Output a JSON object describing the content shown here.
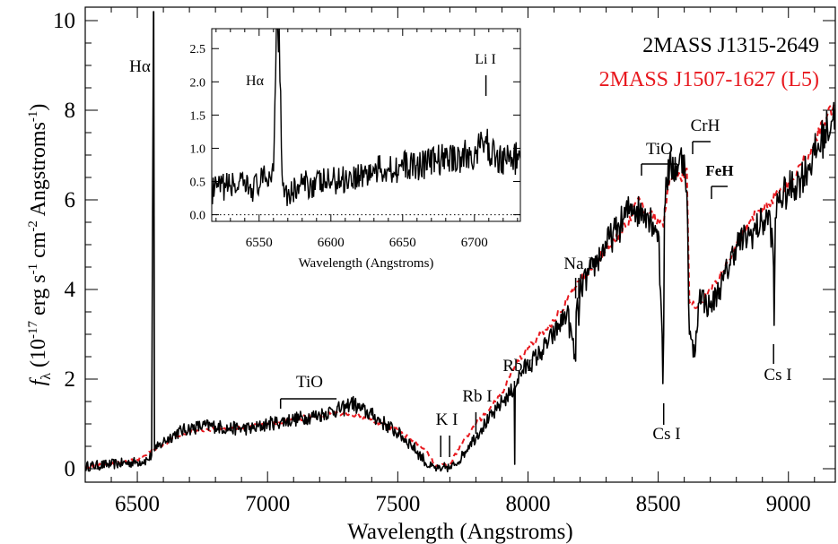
{
  "chart_data": [
    {
      "type": "line",
      "title": "",
      "xlabel": "Wavelength (Angstroms)",
      "ylabel": "f_λ (10^-17 erg s^-1 cm^-2 Angstroms^-1)",
      "ylabel_parts": {
        "f": "f",
        "sub": "λ",
        "main": " (10",
        "exp1": "-17",
        "s": " erg s",
        "exp2": "-1",
        "cm": " cm",
        "exp3": "-2",
        "ang": " Angstroms",
        "exp4": "-1",
        "close": ")"
      },
      "xlim": [
        6300,
        9180
      ],
      "ylim": [
        -0.3,
        10.3
      ],
      "xticks": [
        6500,
        7000,
        7500,
        8000,
        8500,
        9000
      ],
      "yticks": [
        0,
        2,
        4,
        6,
        8,
        10
      ],
      "grid": false,
      "legend_placement": "top-right",
      "series": [
        {
          "name": "2MASS J1315-2649",
          "color": "#000000",
          "style": "solid",
          "x": [
            6300,
            6400,
            6500,
            6540,
            6555,
            6562,
            6563,
            6566,
            6575,
            6600,
            6650,
            6700,
            6750,
            6800,
            6850,
            6900,
            6950,
            7000,
            7050,
            7100,
            7150,
            7200,
            7250,
            7300,
            7320,
            7350,
            7400,
            7450,
            7500,
            7550,
            7600,
            7620,
            7650,
            7665,
            7670,
            7685,
            7700,
            7720,
            7750,
            7780,
            7800,
            7820,
            7850,
            7880,
            7900,
            7920,
            7947,
            7949,
            7951,
            7960,
            7980,
            8000,
            8050,
            8100,
            8150,
            8183,
            8185,
            8190,
            8195,
            8200,
            8250,
            8300,
            8350,
            8400,
            8430,
            8450,
            8480,
            8500,
            8515,
            8518,
            8521,
            8524,
            8530,
            8550,
            8580,
            8600,
            8610,
            8620,
            8640,
            8660,
            8680,
            8700,
            8750,
            8800,
            8850,
            8900,
            8930,
            8943,
            8945,
            8950,
            8960,
            9000,
            9050,
            9100,
            9150,
            9180
          ],
          "y": [
            0.05,
            0.1,
            0.15,
            0.2,
            0.3,
            10.2,
            10.2,
            0.4,
            0.45,
            0.6,
            0.8,
            0.9,
            0.95,
            0.95,
            0.9,
            0.9,
            0.9,
            1.0,
            1.05,
            1.1,
            1.15,
            1.2,
            1.3,
            1.35,
            1.5,
            1.35,
            1.2,
            1.0,
            0.8,
            0.55,
            0.2,
            0.05,
            0.0,
            -0.05,
            0.0,
            0.05,
            0.0,
            0.1,
            0.3,
            0.6,
            0.7,
            0.9,
            1.1,
            1.3,
            1.5,
            1.6,
            1.8,
            0.1,
            1.8,
            2.0,
            2.2,
            2.3,
            2.6,
            3.0,
            3.5,
            2.4,
            3.5,
            3.8,
            3.2,
            4.0,
            4.5,
            5.0,
            5.4,
            5.9,
            5.7,
            5.8,
            5.5,
            5.3,
            3.0,
            1.9,
            3.0,
            5.8,
            6.5,
            6.7,
            6.8,
            7.0,
            6.2,
            3.0,
            2.5,
            4.0,
            3.7,
            3.6,
            4.2,
            5.0,
            5.2,
            5.5,
            5.6,
            4.5,
            3.2,
            5.6,
            6.0,
            6.2,
            6.5,
            7.0,
            7.6,
            8.0
          ]
        },
        {
          "name": "2MASS J1507-1627 (L5)",
          "color": "#e8191f",
          "style": "dashed",
          "x": [
            6300,
            6400,
            6500,
            6600,
            6700,
            6800,
            6900,
            7000,
            7100,
            7200,
            7300,
            7400,
            7500,
            7600,
            7650,
            7700,
            7750,
            7800,
            7850,
            7900,
            7950,
            8000,
            8100,
            8200,
            8300,
            8400,
            8420,
            8440,
            8460,
            8480,
            8500,
            8520,
            8540,
            8560,
            8580,
            8600,
            8610,
            8620,
            8650,
            8700,
            8750,
            8800,
            8850,
            8900,
            8950,
            9000,
            9050,
            9100,
            9150,
            9180
          ],
          "y": [
            0.05,
            0.1,
            0.2,
            0.55,
            0.85,
            0.9,
            0.9,
            1.0,
            1.1,
            1.2,
            1.25,
            1.1,
            0.85,
            0.45,
            0.05,
            0.1,
            0.6,
            1.0,
            1.3,
            1.7,
            2.3,
            2.7,
            3.3,
            4.2,
            4.9,
            5.6,
            6.0,
            5.9,
            5.7,
            5.6,
            5.6,
            5.4,
            6.3,
            6.6,
            6.6,
            6.5,
            6.7,
            3.7,
            3.6,
            4.0,
            4.4,
            5.0,
            5.5,
            5.8,
            6.1,
            6.4,
            6.8,
            7.3,
            7.9,
            8.2
          ]
        }
      ],
      "annotations": [
        "Hα",
        "TiO",
        "K I",
        "Rb I",
        "Rb I",
        "Na I",
        "Cs I",
        "TiO",
        "CrH",
        "FeH",
        "Cs I"
      ]
    },
    {
      "type": "line",
      "title": "",
      "xlabel": "Wavelength (Angstroms)",
      "ylabel": "",
      "xlim": [
        6517,
        6732
      ],
      "ylim": [
        -0.1,
        2.8
      ],
      "xticks": [
        6550,
        6600,
        6650,
        6700
      ],
      "yticks": [
        "0.0",
        "0.5",
        "1.0",
        "1.5",
        "2.0",
        "2.5"
      ],
      "grid": false,
      "zero_line": "dotted",
      "series": [
        {
          "color": "#000000",
          "style": "solid",
          "x": [
            6517,
            6530,
            6545,
            6555,
            6560,
            6562,
            6563,
            6564,
            6566,
            6570,
            6580,
            6600,
            6620,
            6640,
            6660,
            6680,
            6700,
            6707,
            6715,
            6732
          ],
          "y": [
            0.35,
            0.45,
            0.4,
            0.55,
            0.65,
            2.8,
            2.8,
            2.8,
            0.6,
            0.3,
            0.45,
            0.5,
            0.6,
            0.7,
            0.75,
            0.85,
            0.9,
            1.1,
            0.85,
            0.85
          ]
        }
      ],
      "annotations": [
        "Hα",
        "Li I"
      ]
    }
  ]
}
